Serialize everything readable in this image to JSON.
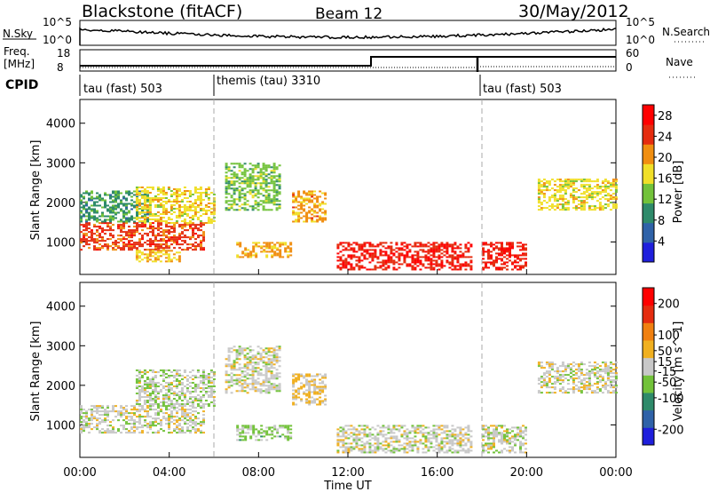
{
  "header": {
    "radar": "Blackstone (fitACF)",
    "beam": "Beam 12",
    "date": "30/May/2012"
  },
  "params_panel": {
    "nsky_label": "N.Sky",
    "nsearch_label": "N.Search",
    "noise_ticks": [
      "10^5",
      "10^0"
    ],
    "freq_label_lines": [
      "Freq.",
      "[MHz]"
    ],
    "freq_ticks": [
      "18",
      "8"
    ],
    "nave_label": "Nave",
    "nave_ticks": [
      "60",
      "0"
    ],
    "cpid_label": "CPID",
    "cpid_segments": [
      {
        "label": "tau (fast) 503",
        "start_hour": 0,
        "end_hour": 6
      },
      {
        "label": "themis (tau) 3310",
        "start_hour": 6,
        "end_hour": 18
      },
      {
        "label": "tau (fast) 503",
        "start_hour": 18,
        "end_hour": 24
      }
    ]
  },
  "chart_data": [
    {
      "type": "heatmap",
      "name": "Power",
      "ylabel": "Slant Range [km]",
      "xlabel": "Time UT",
      "xlim": [
        0,
        24
      ],
      "ylim": [
        180,
        4600
      ],
      "x_ticks": [
        "00:00",
        "04:00",
        "08:00",
        "12:00",
        "16:00",
        "20:00",
        "00:00"
      ],
      "y_ticks": [
        1000,
        2000,
        3000,
        4000
      ],
      "colorbar": {
        "label": "Power [dB]",
        "ticks": [
          4,
          8,
          12,
          16,
          20,
          24,
          28
        ],
        "range": [
          0,
          30
        ],
        "colors": [
          "#1f1fdc",
          "#2f62a8",
          "#2e8a6a",
          "#72c23a",
          "#f0df28",
          "#f08e10",
          "#e52c0f",
          "#ff0000"
        ]
      },
      "cpid_change_hours": [
        6,
        18
      ],
      "echo_bands": [
        {
          "t_start": 0.0,
          "t_end": 5.5,
          "range_start_km": 820,
          "range_end_km": 1500,
          "power_db": 24
        },
        {
          "t_start": 0.0,
          "t_end": 3.0,
          "range_start_km": 1500,
          "range_end_km": 2300,
          "power_db": 10
        },
        {
          "t_start": 2.5,
          "t_end": 6.0,
          "range_start_km": 1500,
          "range_end_km": 2400,
          "power_db": 17
        },
        {
          "t_start": 2.5,
          "t_end": 4.5,
          "range_start_km": 500,
          "range_end_km": 800,
          "power_db": 18
        },
        {
          "t_start": 6.5,
          "t_end": 9.0,
          "range_start_km": 1800,
          "range_end_km": 3000,
          "power_db": 13
        },
        {
          "t_start": 7.0,
          "t_end": 9.5,
          "range_start_km": 600,
          "range_end_km": 1000,
          "power_db": 20
        },
        {
          "t_start": 9.5,
          "t_end": 11.0,
          "range_start_km": 1500,
          "range_end_km": 2300,
          "power_db": 20
        },
        {
          "t_start": 11.5,
          "t_end": 17.5,
          "range_start_km": 300,
          "range_end_km": 1000,
          "power_db": 26
        },
        {
          "t_start": 18.0,
          "t_end": 20.0,
          "range_start_km": 300,
          "range_end_km": 1000,
          "power_db": 26
        },
        {
          "t_start": 20.5,
          "t_end": 24.0,
          "range_start_km": 1800,
          "range_end_km": 2600,
          "power_db": 17
        }
      ]
    },
    {
      "type": "heatmap",
      "name": "Velocity",
      "ylabel": "Slant Range [km]",
      "xlabel": "Time UT",
      "xlim": [
        0,
        24
      ],
      "ylim": [
        180,
        4600
      ],
      "x_ticks": [
        "00:00",
        "04:00",
        "08:00",
        "12:00",
        "16:00",
        "20:00",
        "00:00"
      ],
      "y_ticks": [
        1000,
        2000,
        3000,
        4000
      ],
      "colorbar": {
        "label": "Velocity [m s^-1]",
        "ticks": [
          200,
          100,
          50,
          15,
          -15,
          -50,
          -100,
          -200
        ],
        "range": [
          -250,
          250
        ],
        "colors": [
          "#1f1fdc",
          "#2f62a8",
          "#2e8a6a",
          "#72c23a",
          "#c8c8c8",
          "#f0b020",
          "#f08010",
          "#e52c0f",
          "#ff0000"
        ]
      },
      "cpid_change_hours": [
        6,
        18
      ],
      "echo_bands": [
        {
          "t_start": 0.0,
          "t_end": 5.5,
          "range_start_km": 820,
          "range_end_km": 1500,
          "velocity_ms": 0
        },
        {
          "t_start": 2.5,
          "t_end": 6.0,
          "range_start_km": 1500,
          "range_end_km": 2400,
          "velocity_ms": -10
        },
        {
          "t_start": 6.5,
          "t_end": 9.0,
          "range_start_km": 1800,
          "range_end_km": 3000,
          "velocity_ms": 0
        },
        {
          "t_start": 7.0,
          "t_end": 9.5,
          "range_start_km": 600,
          "range_end_km": 1000,
          "velocity_ms": -40
        },
        {
          "t_start": 9.5,
          "t_end": 11.0,
          "range_start_km": 1500,
          "range_end_km": 2300,
          "velocity_ms": 30
        },
        {
          "t_start": 11.5,
          "t_end": 17.5,
          "range_start_km": 300,
          "range_end_km": 1000,
          "velocity_ms": 0
        },
        {
          "t_start": 18.0,
          "t_end": 20.0,
          "range_start_km": 300,
          "range_end_km": 1000,
          "velocity_ms": 0
        },
        {
          "t_start": 20.5,
          "t_end": 24.0,
          "range_start_km": 1800,
          "range_end_km": 2600,
          "velocity_ms": 0
        }
      ]
    }
  ]
}
